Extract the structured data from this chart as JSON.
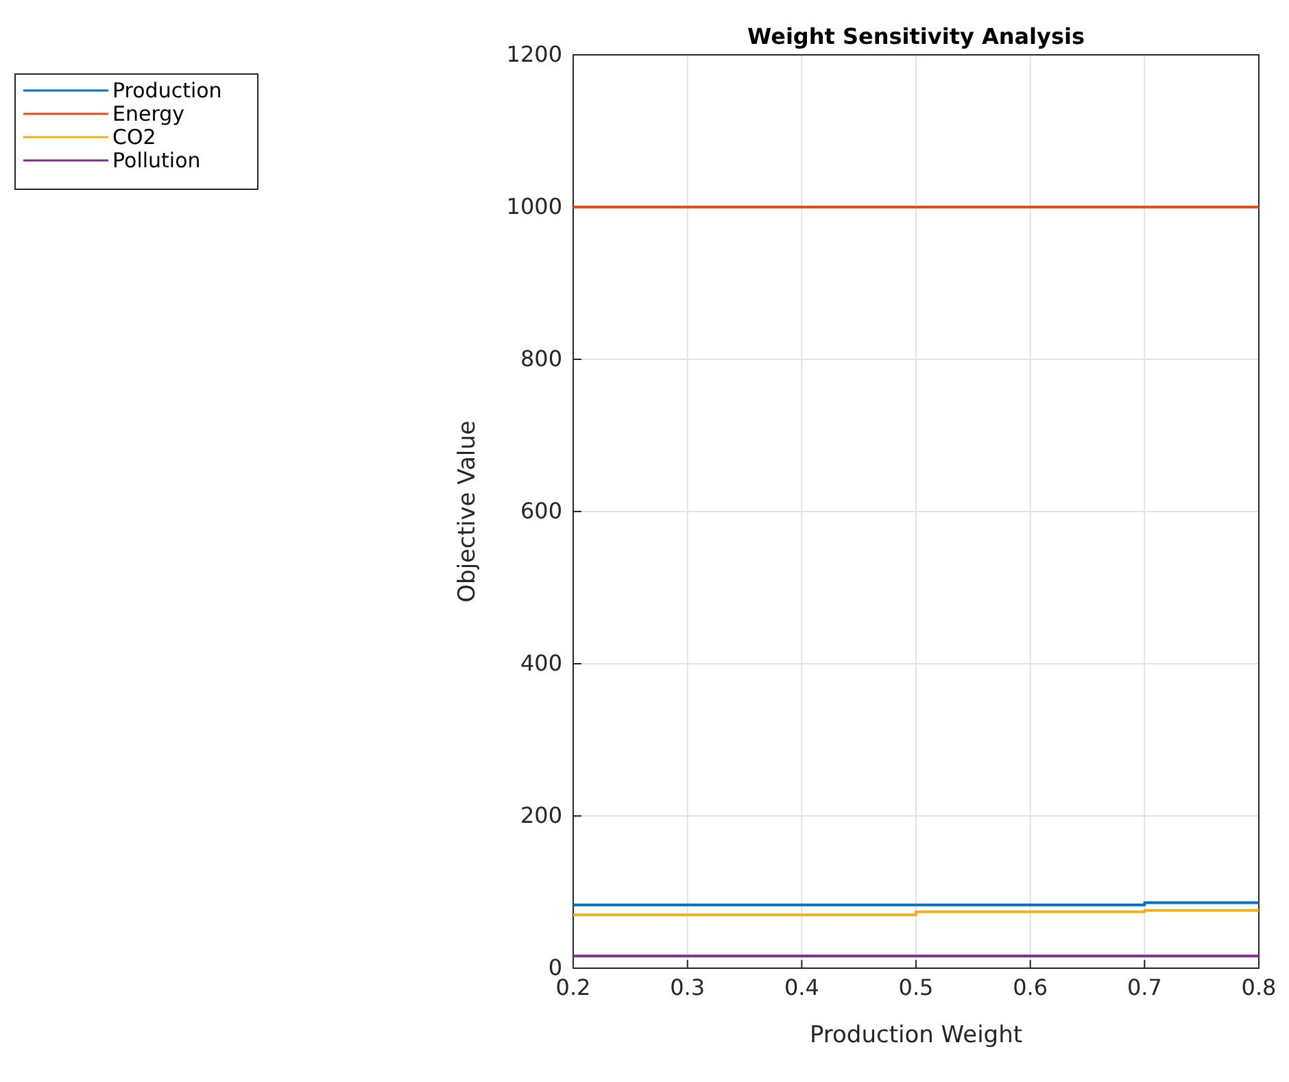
{
  "chart_data": {
    "type": "step",
    "title": "Weight Sensitivity Analysis",
    "xlabel": "Production Weight",
    "ylabel": "Objective Value",
    "x": [
      0.2,
      0.3,
      0.4,
      0.5,
      0.6,
      0.7,
      0.8
    ],
    "series": [
      {
        "name": "Production",
        "color": "#0072bd",
        "values": [
          83,
          83,
          83,
          83,
          83,
          86,
          86
        ]
      },
      {
        "name": "Energy",
        "color": "#d95319",
        "values": [
          1000,
          1000,
          1000,
          1000,
          1000,
          1000,
          1000
        ]
      },
      {
        "name": "CO2",
        "color": "#edb120",
        "values": [
          70,
          70,
          70,
          74,
          74,
          76,
          76
        ]
      },
      {
        "name": "Pollution",
        "color": "#7e2f8e",
        "values": [
          16,
          16,
          16,
          16,
          16,
          16,
          16
        ]
      }
    ],
    "xlim": [
      0.2,
      0.8
    ],
    "xticks": [
      0.2,
      0.3,
      0.4,
      0.5,
      0.6,
      0.7,
      0.8
    ],
    "ylim": [
      0,
      1200
    ],
    "yticks": [
      0,
      200,
      400,
      600,
      800,
      1000,
      1200
    ],
    "grid": true,
    "legend": "top left"
  }
}
